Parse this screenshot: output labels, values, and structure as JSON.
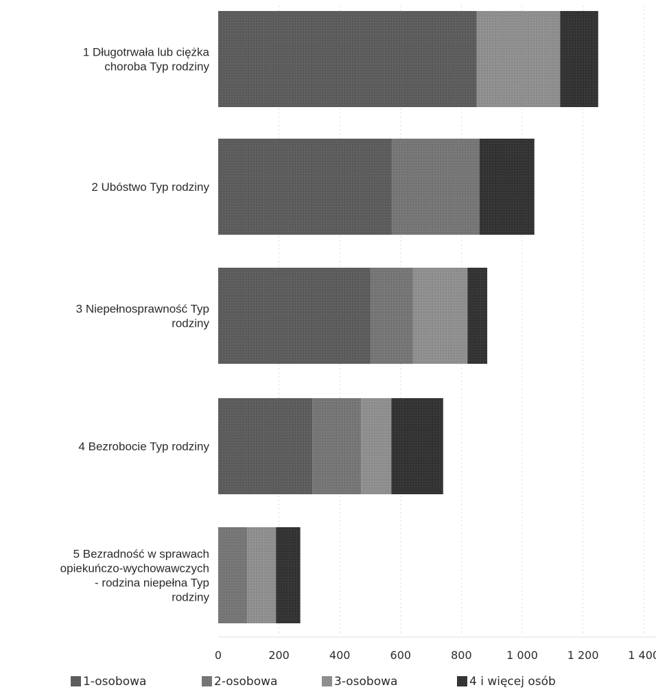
{
  "chart_data": {
    "type": "bar",
    "orientation": "horizontal",
    "stacked": true,
    "categories": [
      "1 Długotrwała lub ciężka choroba Typ rodziny",
      "2 Ubóstwo Typ rodziny",
      "3 Niepełnosprawność Typ rodziny",
      "4 Bezrobocie Typ rodziny",
      "5 Bezradność w sprawach opiekuńczo-wychowawczych - rodzina niepełna Typ rodziny"
    ],
    "category_label_lines": [
      [
        "1 Długotrwała lub ciężka",
        "choroba Typ rodziny"
      ],
      [
        "2 Ubóstwo Typ rodziny"
      ],
      [
        "3 Niepełnosprawność Typ",
        "rodziny"
      ],
      [
        "4 Bezrobocie Typ rodziny"
      ],
      [
        "5 Bezradność w sprawach",
        "opiekuńczo-wychowawczych",
        "- rodzina niepełna Typ",
        "rodziny"
      ]
    ],
    "series": [
      {
        "name": "1-osobowa",
        "color": "#5c5c5c",
        "values": [
          850,
          570,
          500,
          310,
          0
        ]
      },
      {
        "name": "2-osobowa",
        "color": "#767676",
        "values": [
          0,
          290,
          140,
          160,
          95
        ]
      },
      {
        "name": "3-osobowa",
        "color": "#8f8f8f",
        "values": [
          275,
          0,
          180,
          100,
          95
        ]
      },
      {
        "name": "4  i więcej osób",
        "color": "#333333",
        "values": [
          125,
          180,
          65,
          170,
          80
        ]
      }
    ],
    "xlim": [
      0,
      1400
    ],
    "xticks": [
      0,
      200,
      400,
      600,
      800,
      1000,
      1200,
      1400
    ],
    "xtick_labels": [
      "0",
      "200",
      "400",
      "600",
      "800",
      "1 000",
      "1 200",
      "1 400"
    ],
    "title": "",
    "xlabel": "",
    "ylabel": "",
    "grid": true,
    "legend_position": "bottom"
  }
}
